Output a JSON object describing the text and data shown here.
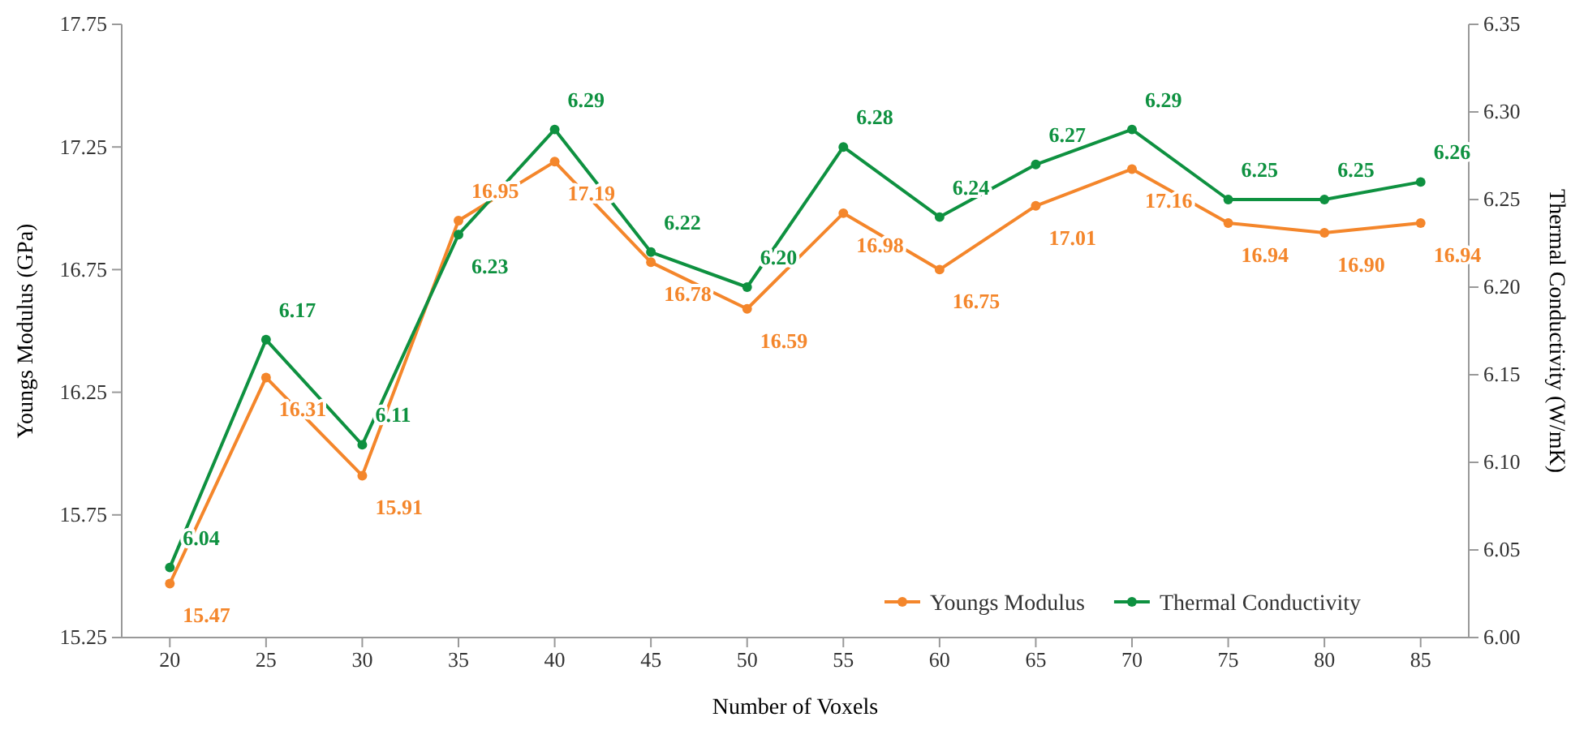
{
  "chart_data": {
    "type": "line",
    "xlabel": "Number of Voxels",
    "ylabel": "Youngs Modulus (GPa)",
    "y2label": "Thermal Conductivity (W/mK)",
    "categories": [
      "20",
      "25",
      "30",
      "35",
      "40",
      "45",
      "50",
      "55",
      "60",
      "65",
      "70",
      "75",
      "80",
      "85"
    ],
    "series": [
      {
        "name": "Youngs Modulus",
        "color": "#f4862b",
        "values": [
          15.47,
          16.31,
          15.91,
          16.95,
          17.19,
          16.78,
          16.59,
          16.98,
          16.75,
          17.01,
          17.16,
          16.94,
          16.9,
          16.94
        ],
        "value_labels": [
          "15.47",
          "16.31",
          "15.91",
          "16.95",
          "17.19",
          "16.78",
          "16.59",
          "16.98",
          "16.75",
          "17.01",
          "17.16",
          "16.94",
          "16.90",
          "16.94"
        ]
      },
      {
        "name": "Thermal Conductivity",
        "color": "#0e9140",
        "axis": "y2",
        "values": [
          6.04,
          6.17,
          6.11,
          6.23,
          6.29,
          6.22,
          6.2,
          6.28,
          6.24,
          6.27,
          6.29,
          6.25,
          6.25,
          6.26
        ],
        "value_labels": [
          "6.04",
          "6.17",
          "6.11",
          "6.23",
          "6.29",
          "6.22",
          "6.20",
          "6.28",
          "6.24",
          "6.27",
          "6.29",
          "6.25",
          "6.25",
          "6.26"
        ]
      }
    ],
    "ylim": [
      15.25,
      17.75
    ],
    "yticks": [
      {
        "value": 15.25,
        "label": "15.25"
      },
      {
        "value": 15.75,
        "label": "15.75"
      },
      {
        "value": 16.25,
        "label": "16.25"
      },
      {
        "value": 16.75,
        "label": "16.75"
      },
      {
        "value": 17.25,
        "label": "17.25"
      },
      {
        "value": 17.75,
        "label": "17.75"
      }
    ],
    "y2lim": [
      6.0,
      6.35
    ],
    "y2ticks": [
      {
        "value": 6.0,
        "label": "6.00"
      },
      {
        "value": 6.05,
        "label": "6.05"
      },
      {
        "value": 6.1,
        "label": "6.10"
      },
      {
        "value": 6.15,
        "label": "6.15"
      },
      {
        "value": 6.2,
        "label": "6.20"
      },
      {
        "value": 6.25,
        "label": "6.25"
      },
      {
        "value": 6.3,
        "label": "6.30"
      },
      {
        "value": 6.35,
        "label": "6.35"
      }
    ],
    "legend": "bottom right",
    "marker": "circle",
    "line_style": "solid"
  }
}
